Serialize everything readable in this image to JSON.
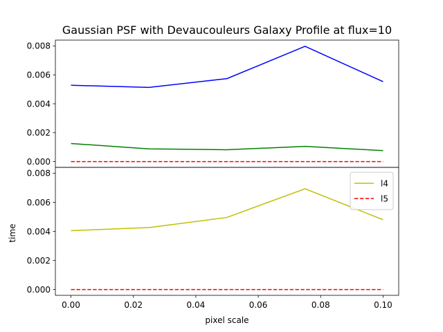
{
  "chart_data": [
    {
      "type": "line",
      "title": "Gaussian PSF with Devaucouleurs Galaxy Profile at flux=10",
      "xlabel": "",
      "ylabel": "",
      "x": [
        0.0,
        0.025,
        0.05,
        0.075,
        0.1
      ],
      "xlim": [
        -0.005,
        0.105
      ],
      "ylim": [
        -0.0004,
        0.0084
      ],
      "yticks": [
        0.0,
        0.002,
        0.004,
        0.006,
        0.008
      ],
      "ytick_labels": [
        "0.000",
        "0.002",
        "0.004",
        "0.006",
        "0.008"
      ],
      "grid": false,
      "series": [
        {
          "color": "#0000ff",
          "dash": "solid",
          "values": [
            0.00528,
            0.00513,
            0.00574,
            0.00797,
            0.00553
          ]
        },
        {
          "color": "#008000",
          "dash": "solid",
          "values": [
            0.00125,
            0.00088,
            0.00082,
            0.00105,
            0.00076
          ]
        },
        {
          "color": "#ff0000",
          "dash": "dashed",
          "values": [
            0.0,
            0.0,
            0.0,
            0.0,
            0.0
          ]
        }
      ]
    },
    {
      "type": "line",
      "xlabel": "pixel scale",
      "ylabel": "time",
      "x": [
        0.0,
        0.025,
        0.05,
        0.075,
        0.1
      ],
      "xlim": [
        -0.005,
        0.105
      ],
      "ylim": [
        -0.0004,
        0.0084
      ],
      "xticks": [
        0.0,
        0.02,
        0.04,
        0.06,
        0.08,
        0.1
      ],
      "xtick_labels": [
        "0.00",
        "0.02",
        "0.04",
        "0.06",
        "0.08",
        "0.10"
      ],
      "yticks": [
        0.0,
        0.002,
        0.004,
        0.006,
        0.008
      ],
      "ytick_labels": [
        "0.000",
        "0.002",
        "0.004",
        "0.006",
        "0.008"
      ],
      "grid": false,
      "legend": "top-right",
      "series": [
        {
          "name": "l4",
          "color": "#bfbf00",
          "dash": "solid",
          "values": [
            0.00405,
            0.00426,
            0.00496,
            0.00693,
            0.0048
          ]
        },
        {
          "name": "l5",
          "color": "#ff0000",
          "dash": "dashed",
          "values": [
            0.0,
            0.0,
            0.0,
            0.0,
            0.0
          ]
        }
      ]
    }
  ]
}
